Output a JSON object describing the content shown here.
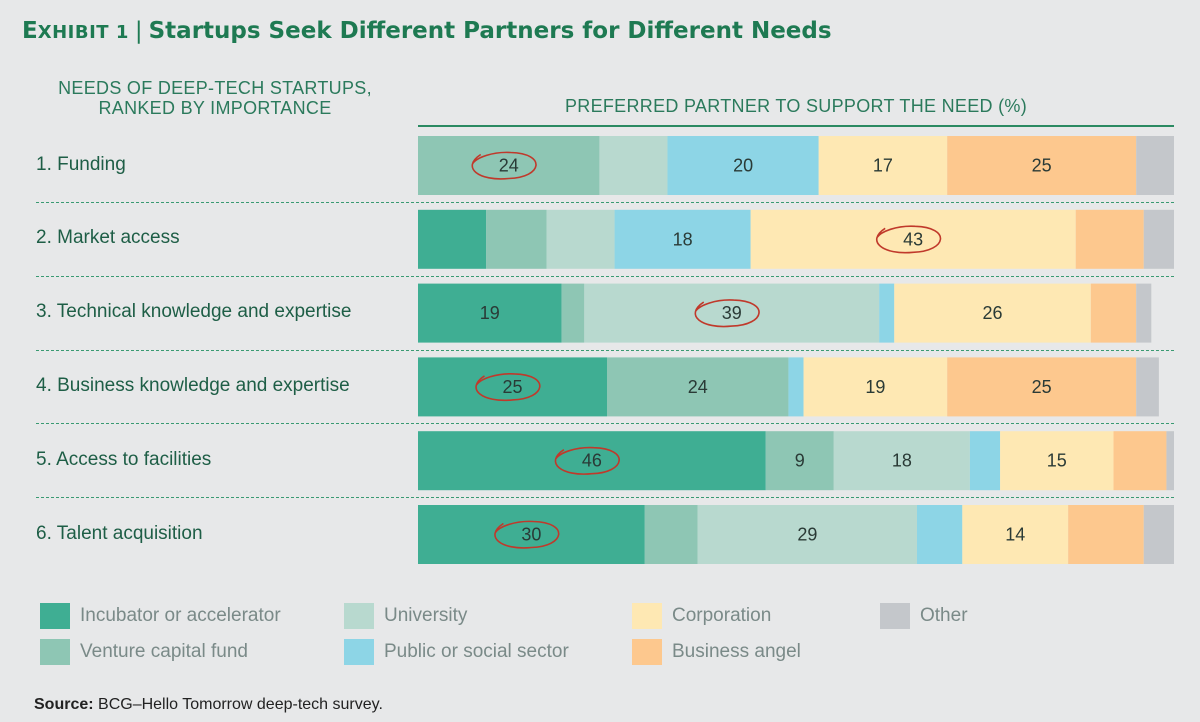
{
  "title": {
    "exhibit_prefix": "E",
    "exhibit_rest": "XHIBIT 1",
    "separator": "|",
    "text": "Startups Seek Different Partners for Different Needs"
  },
  "needs_header": {
    "line1": "NEEDS OF DEEP-TECH STARTUPS,",
    "line2": "RANKED BY IMPORTANCE"
  },
  "partner_header": "PREFERRED PARTNER TO SUPPORT THE NEED (%)",
  "chart_data": {
    "type": "bar",
    "orientation": "horizontal",
    "stacked": true,
    "normalized_to_100": true,
    "categories": [
      "1. Funding",
      "2. Market access",
      "3. Technical knowledge and expertise",
      "4. Business knowledge and expertise",
      "5. Access to facilities",
      "6. Talent acquisition"
    ],
    "series": [
      {
        "name": "Incubator or accelerator",
        "color": "#3fae93",
        "values": [
          0,
          9,
          19,
          25,
          46,
          30
        ]
      },
      {
        "name": "Venture capital fund",
        "color": "#8ec6b4",
        "values": [
          24,
          8,
          3,
          24,
          9,
          7
        ]
      },
      {
        "name": "University",
        "color": "#b8d9cf",
        "values": [
          9,
          9,
          39,
          0,
          18,
          29
        ]
      },
      {
        "name": "Public or social sector",
        "color": "#8dd5e6",
        "values": [
          20,
          18,
          2,
          2,
          4,
          6
        ]
      },
      {
        "name": "Corporation",
        "color": "#fee8b3",
        "values": [
          17,
          43,
          26,
          19,
          15,
          14
        ]
      },
      {
        "name": "Business angel",
        "color": "#fdc88e",
        "values": [
          25,
          9,
          6,
          25,
          7,
          10
        ]
      },
      {
        "name": "Other",
        "color": "#c4c7cb",
        "values": [
          5,
          4,
          2,
          3,
          1,
          4
        ]
      }
    ],
    "data_labels": [
      [
        null,
        "24",
        null,
        "20",
        "17",
        "25",
        null
      ],
      [
        null,
        null,
        null,
        "18",
        "43",
        null,
        null
      ],
      [
        "19",
        null,
        "39",
        null,
        "26",
        null,
        null
      ],
      [
        "25",
        "24",
        null,
        null,
        "19",
        "25",
        null
      ],
      [
        "46",
        "9",
        "18",
        null,
        "15",
        null,
        null
      ],
      [
        "30",
        null,
        "29",
        null,
        "14",
        null,
        null
      ]
    ],
    "highlighted": [
      [
        0,
        1
      ],
      [
        1,
        4
      ],
      [
        2,
        2
      ],
      [
        3,
        0
      ],
      [
        4,
        0
      ],
      [
        5,
        0
      ]
    ],
    "highlight_color": "#c0392b",
    "xlim": [
      0,
      100
    ],
    "legend_position": "bottom"
  },
  "source": {
    "label": "Source:",
    "text": "BCG–Hello Tomorrow deep-tech survey."
  }
}
